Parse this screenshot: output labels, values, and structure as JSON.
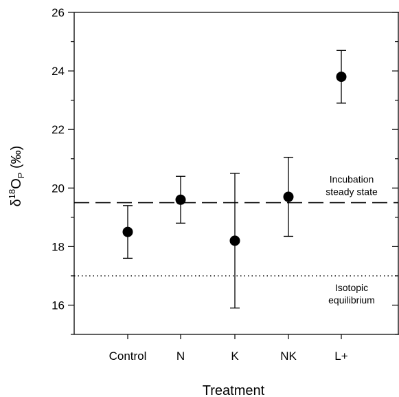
{
  "chart_data": {
    "type": "scatter",
    "categories": [
      "Control",
      "N",
      "K",
      "NK",
      "L+"
    ],
    "series": [
      {
        "values": [
          18.5,
          19.6,
          18.2,
          19.7,
          23.8
        ],
        "err_low": [
          17.6,
          18.8,
          15.9,
          18.35,
          22.9
        ],
        "err_high": [
          19.4,
          20.4,
          20.5,
          21.05,
          24.7
        ]
      }
    ],
    "ylim": [
      15,
      26
    ],
    "yticks": [
      "16",
      "18",
      "20",
      "22",
      "24",
      "26"
    ],
    "ylabel": {
      "base": "δ",
      "sup": "18",
      "mid": "O",
      "sub": "P",
      "end": " (‰)"
    },
    "xlabel": "Treatment",
    "reference_lines": [
      {
        "value": 19.5,
        "style": "dashed",
        "label_lines": [
          "Incubation",
          "steady state"
        ]
      },
      {
        "value": 17.0,
        "style": "dotted",
        "label_lines": [
          "Isotopic",
          "equilibrium"
        ]
      }
    ],
    "grid": false,
    "legend": "none",
    "marker_color": "#000000"
  }
}
